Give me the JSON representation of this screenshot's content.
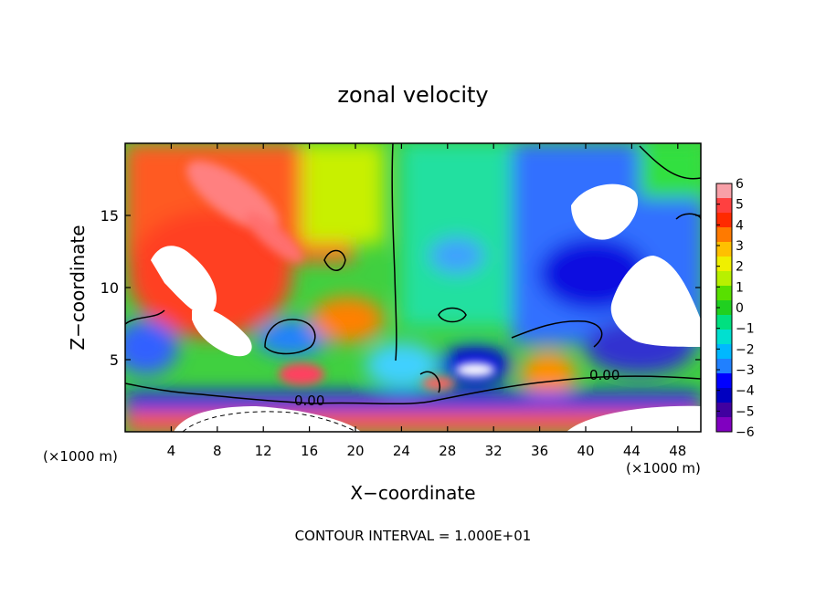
{
  "chart_data": {
    "type": "heatmap",
    "title": "zonal velocity",
    "xlabel": "X−coordinate",
    "ylabel": "Z−coordinate",
    "x_unit_left": "(×1000 m)",
    "x_unit_right": "(×1000 m)",
    "footer": "CONTOUR INTERVAL = 1.000E+01",
    "xlim": [
      0,
      50
    ],
    "ylim": [
      0,
      20
    ],
    "x_ticks": [
      4,
      8,
      12,
      16,
      20,
      24,
      28,
      32,
      36,
      40,
      44,
      48
    ],
    "y_ticks": [
      5,
      10,
      15
    ],
    "contour_labels": [
      "0.00",
      "0.00"
    ],
    "colorbar": {
      "min": -6,
      "max": 6,
      "ticks": [
        6,
        5,
        4,
        3,
        2,
        1,
        0,
        "−1",
        "−2",
        "−3",
        "−4",
        "−5",
        "−6"
      ],
      "colors": [
        "#f8a0a8",
        "#ff4040",
        "#ff2a00",
        "#ff7a00",
        "#ffc000",
        "#f0f000",
        "#b8f000",
        "#58e000",
        "#20d020",
        "#00e080",
        "#00e0d0",
        "#00b8ff",
        "#2080ff",
        "#0000ff",
        "#0000c0",
        "#4000a0",
        "#8000c0"
      ]
    }
  }
}
